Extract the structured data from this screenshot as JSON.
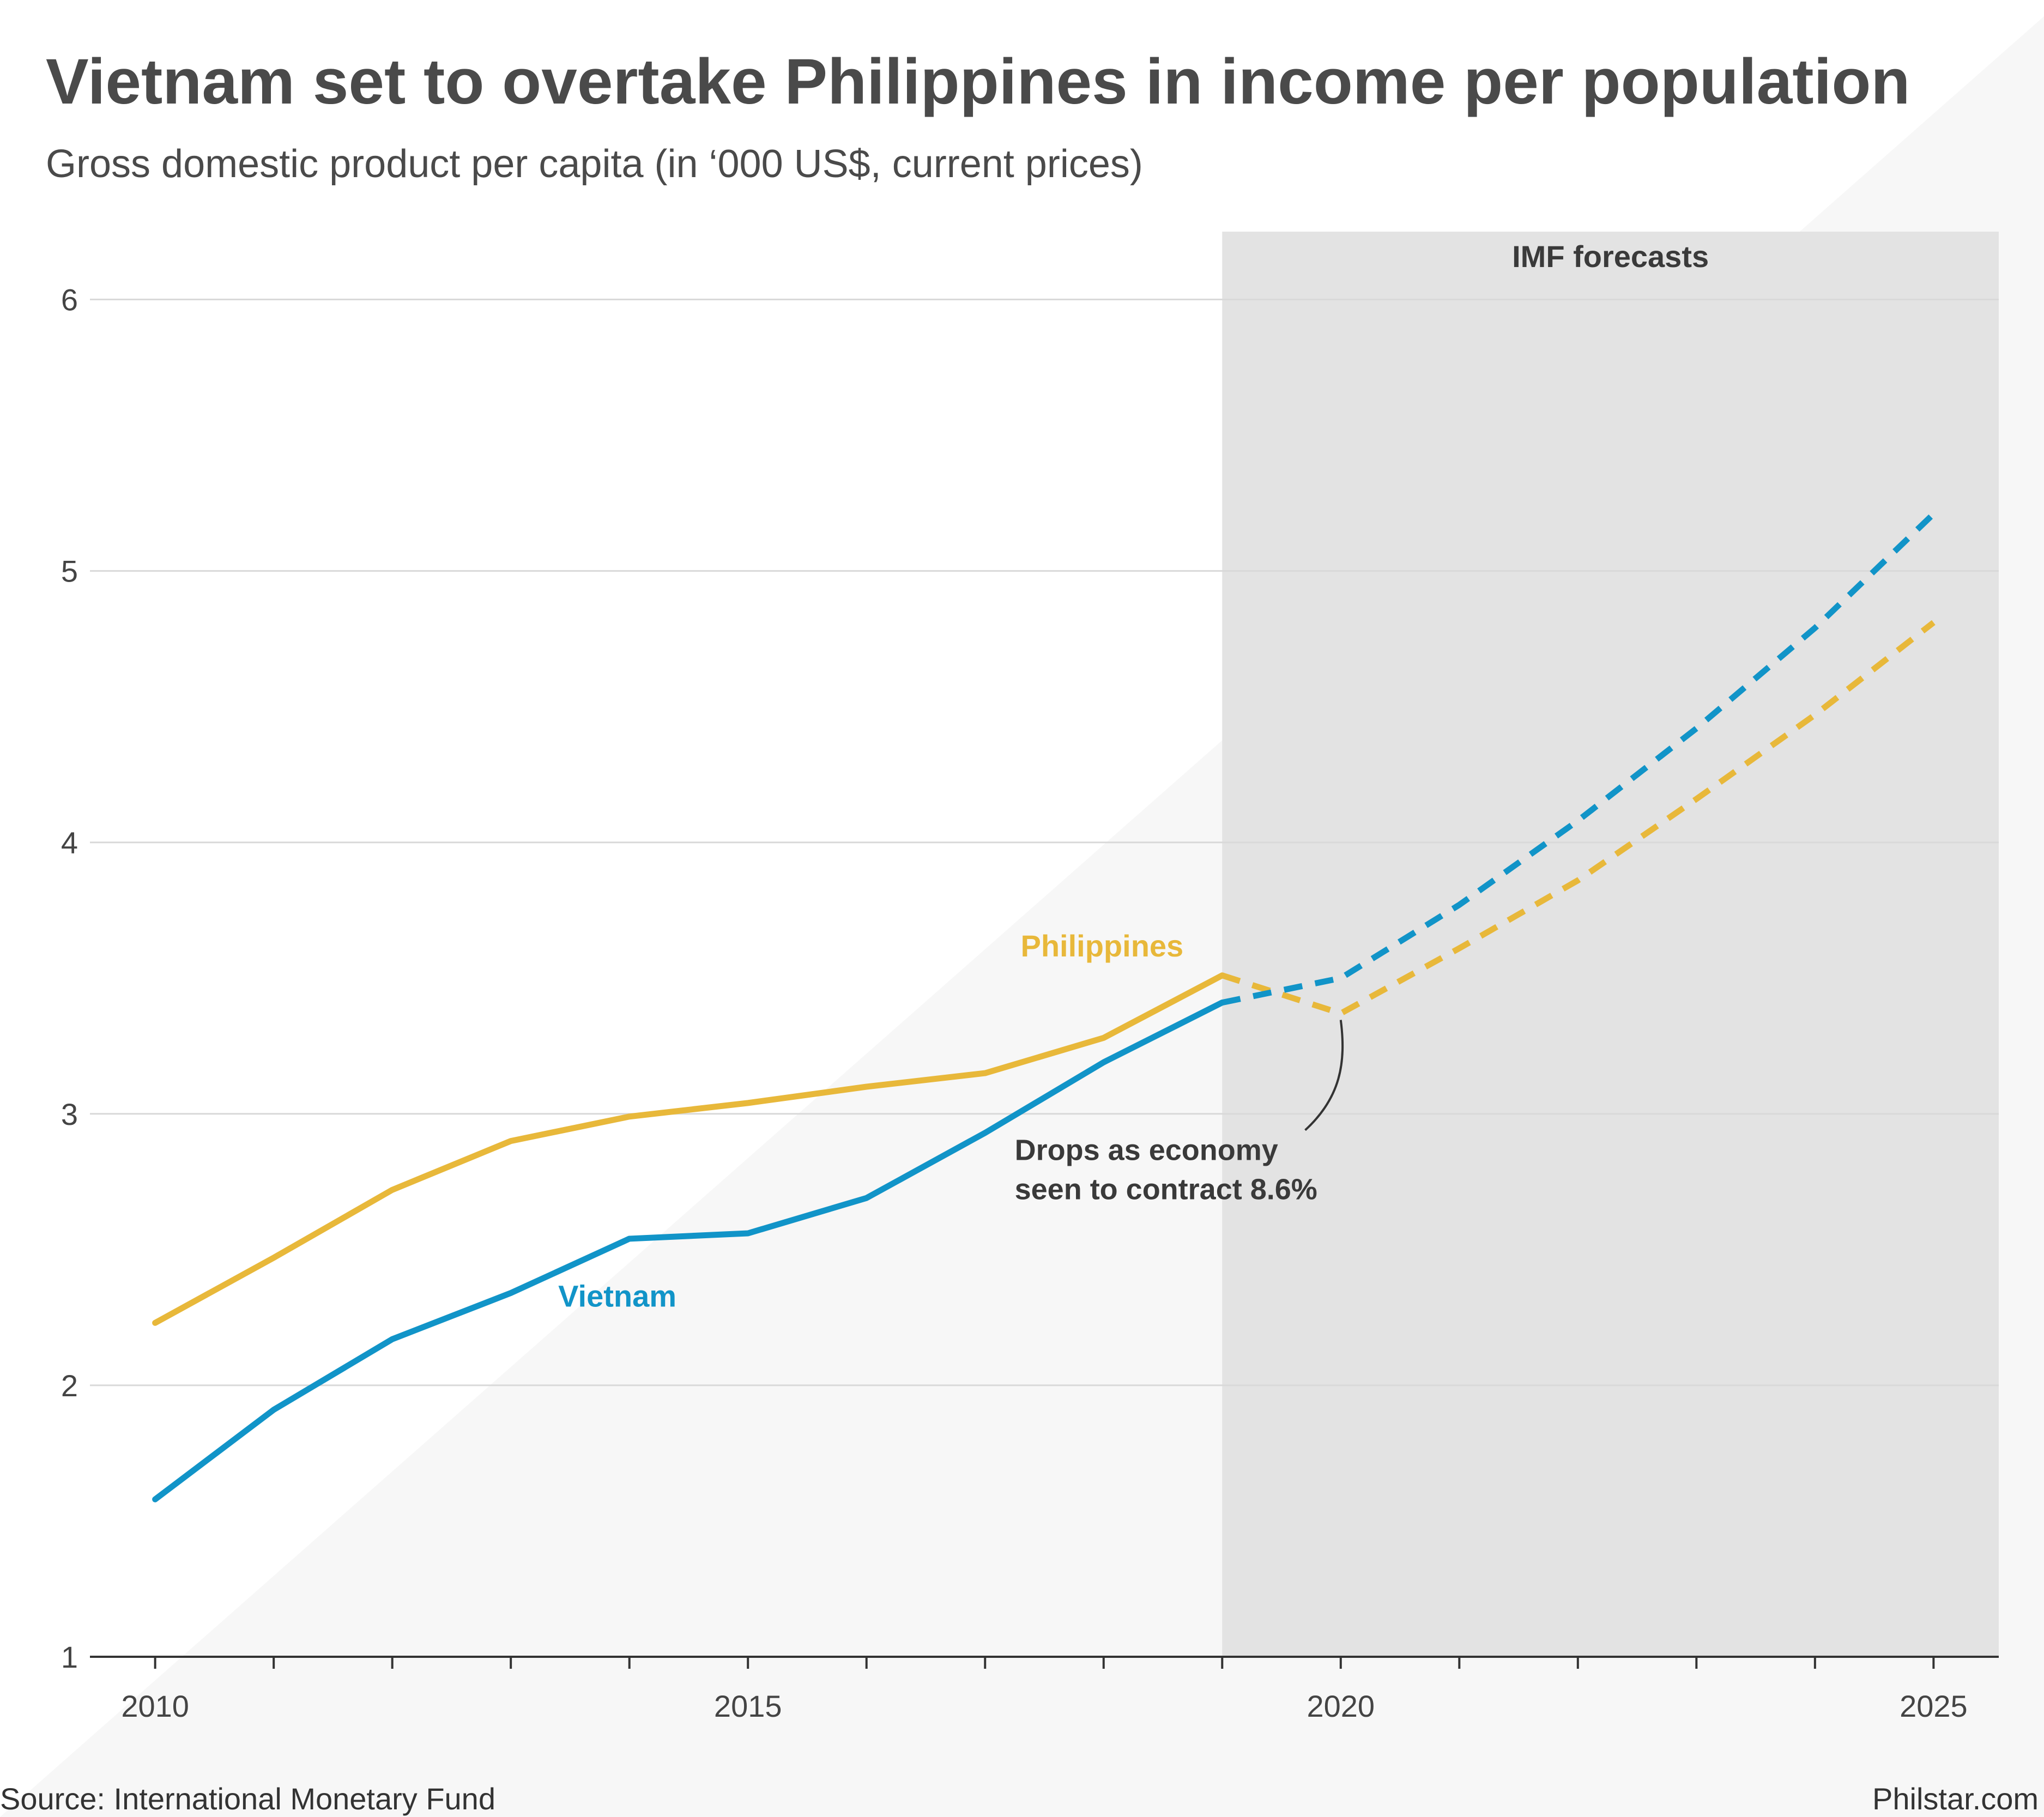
{
  "chart_data": {
    "type": "line",
    "title": "Vietnam set to overtake Philippines in income per population",
    "subtitle": "Gross domestic product per capita (in ‘000 US$, current prices)",
    "x": [
      2010,
      2011,
      2012,
      2013,
      2014,
      2015,
      2016,
      2017,
      2018,
      2019,
      2020,
      2021,
      2022,
      2023,
      2024,
      2025
    ],
    "xlim": [
      2009.45,
      2025.55
    ],
    "ylim": [
      1,
      6.25
    ],
    "x_ticks": [
      "2010",
      "2015",
      "2020",
      "2025"
    ],
    "y_ticks": [
      "1",
      "2",
      "3",
      "4",
      "5",
      "6"
    ],
    "grid": "horizontal",
    "forecast_start": 2019,
    "forecast_label": "IMF forecasts",
    "series": [
      {
        "name": "Philippines",
        "color": "#e8b83a",
        "values": [
          2.23,
          2.47,
          2.72,
          2.9,
          2.99,
          3.04,
          3.1,
          3.15,
          3.28,
          3.51,
          3.37,
          3.61,
          3.86,
          4.16,
          4.47,
          4.81
        ]
      },
      {
        "name": "Vietnam",
        "color": "#1194c8",
        "values": [
          1.58,
          1.91,
          2.17,
          2.34,
          2.54,
          2.56,
          2.69,
          2.93,
          3.19,
          3.41,
          3.5,
          3.77,
          4.08,
          4.42,
          4.79,
          5.21
        ]
      }
    ],
    "annotation": {
      "lines": [
        "Drops as economy",
        "seen to contract 8.6%"
      ],
      "target": {
        "x": 2020,
        "y": 3.37
      }
    }
  },
  "footer": {
    "source": "Source: International Monetary Fund",
    "credit": "Philstar.com"
  }
}
